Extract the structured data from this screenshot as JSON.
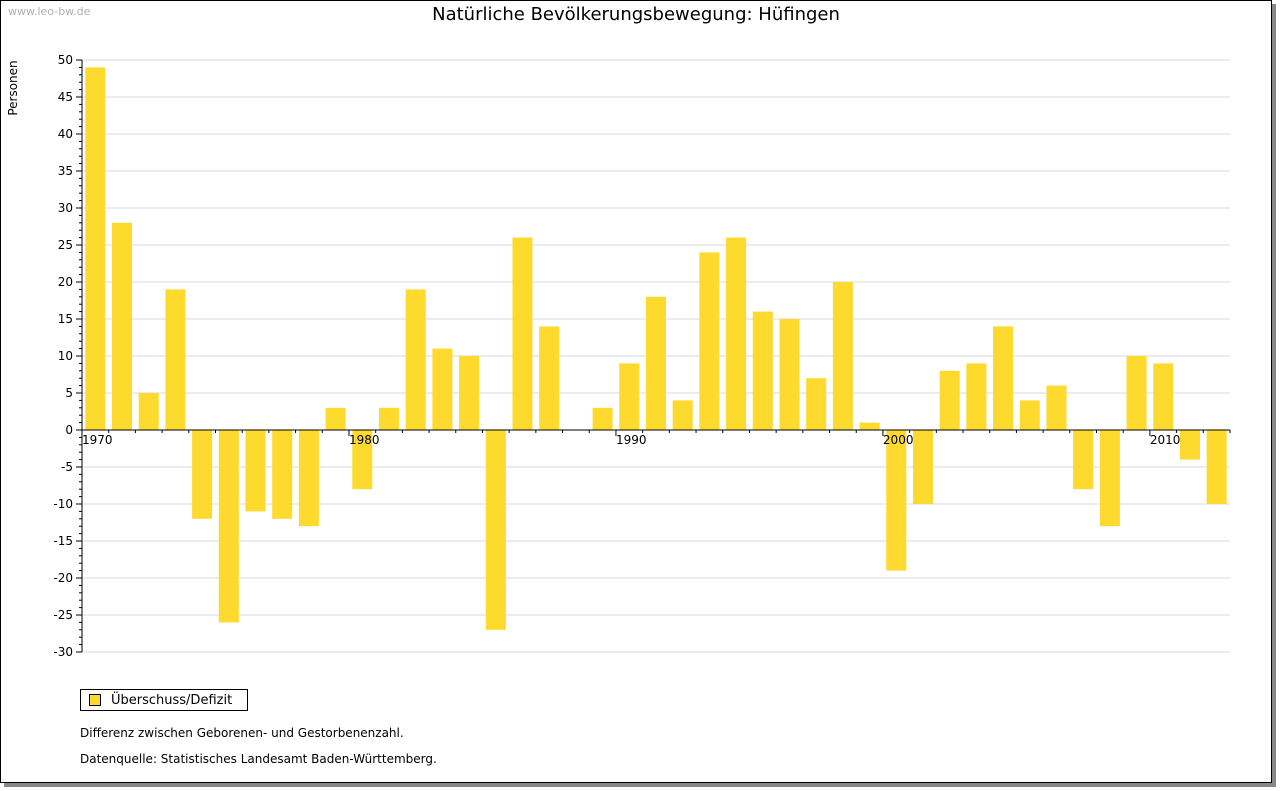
{
  "watermark": "www.leo-bw.de",
  "chart_data": {
    "type": "bar",
    "title": "Natürliche Bevölkerungsbewegung: Hüfingen",
    "xlabel": "",
    "ylabel": "Personen",
    "ylim": [
      -30,
      50
    ],
    "yticks": [
      50,
      45,
      40,
      35,
      30,
      25,
      20,
      15,
      10,
      5,
      0,
      -5,
      -10,
      -15,
      -20,
      -25,
      -30
    ],
    "xtick_labels": [
      "1970",
      "1980",
      "1990",
      "2000",
      "2010"
    ],
    "grid": true,
    "legend_position": "bottom-left",
    "bar_color": "#fed92e",
    "categories": [
      1970,
      1971,
      1972,
      1973,
      1974,
      1975,
      1976,
      1977,
      1978,
      1979,
      1980,
      1981,
      1982,
      1983,
      1984,
      1985,
      1986,
      1987,
      1988,
      1989,
      1990,
      1991,
      1992,
      1993,
      1994,
      1995,
      1996,
      1997,
      1998,
      1999,
      2000,
      2001,
      2002,
      2003,
      2004,
      2005,
      2006,
      2007,
      2008,
      2009,
      2010,
      2011,
      2012
    ],
    "series": [
      {
        "name": "Überschuss/Defizit",
        "values": [
          49,
          28,
          5,
          19,
          -12,
          -26,
          -11,
          -12,
          -13,
          3,
          -8,
          3,
          19,
          11,
          10,
          -27,
          26,
          14,
          0,
          3,
          9,
          18,
          4,
          24,
          26,
          16,
          15,
          7,
          20,
          1,
          -19,
          -10,
          8,
          9,
          14,
          4,
          6,
          -8,
          -13,
          10,
          9,
          -4,
          -10
        ]
      }
    ]
  },
  "notes": {
    "description": "Differenz zwischen Geborenen- und Gestorbenenzahl.",
    "source": "Datenquelle: Statistisches Landesamt Baden-Württemberg."
  }
}
